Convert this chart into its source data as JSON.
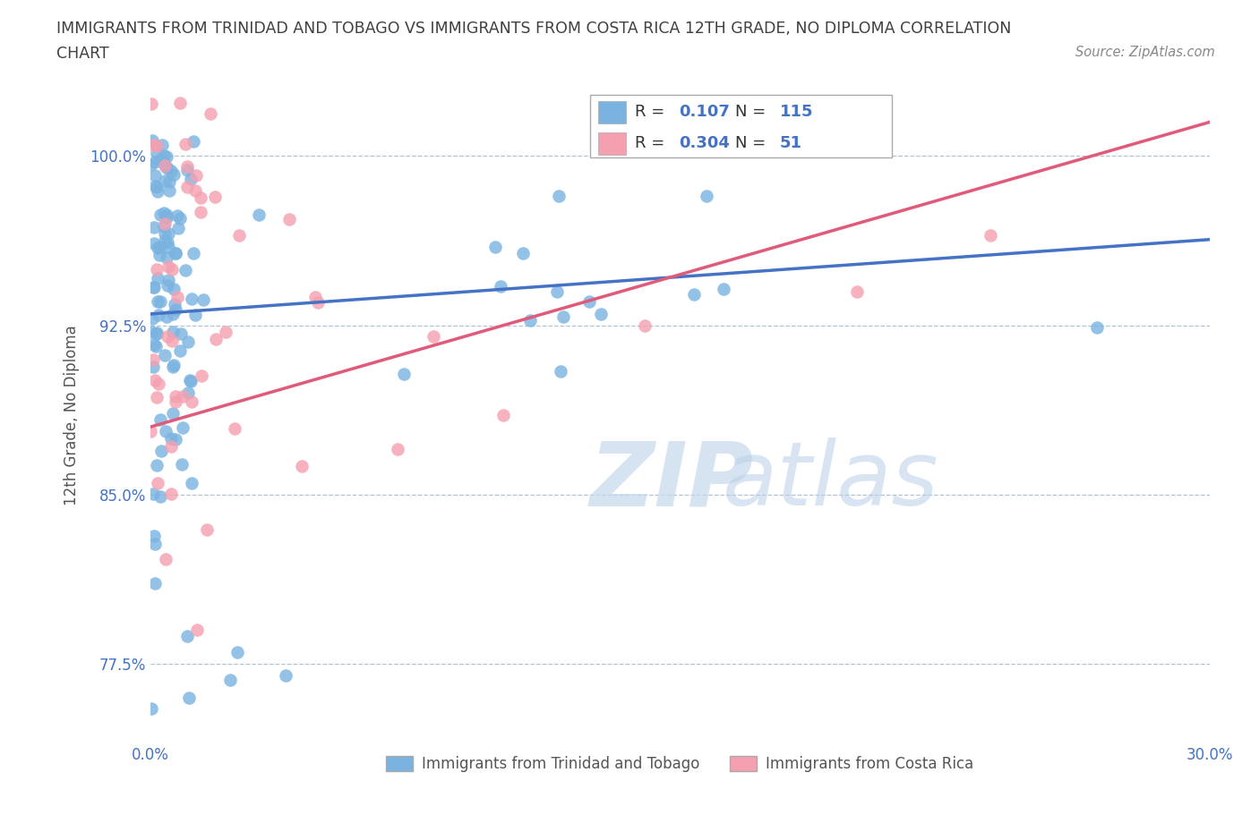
{
  "title_line1": "IMMIGRANTS FROM TRINIDAD AND TOBAGO VS IMMIGRANTS FROM COSTA RICA 12TH GRADE, NO DIPLOMA CORRELATION",
  "title_line2": "CHART",
  "source_text": "Source: ZipAtlas.com",
  "ylabel": "12th Grade, No Diploma",
  "xmin": 0.0,
  "xmax": 0.3,
  "ymin": 0.74,
  "ymax": 1.03,
  "yticks": [
    0.775,
    0.85,
    0.925,
    1.0
  ],
  "ytick_labels": [
    "77.5%",
    "85.0%",
    "92.5%",
    "100.0%"
  ],
  "xticks": [
    0.0,
    0.05,
    0.1,
    0.15,
    0.2,
    0.25,
    0.3
  ],
  "xtick_labels": [
    "0.0%",
    "",
    "",
    "",
    "",
    "",
    "30.0%"
  ],
  "series1_name": "Immigrants from Trinidad and Tobago",
  "series1_R": 0.107,
  "series1_N": 115,
  "series1_color": "#7ab3e0",
  "series1_line_color": "#4472c4",
  "series1_line_y0": 0.93,
  "series1_line_y1": 0.963,
  "series2_name": "Immigrants from Costa Rica",
  "series2_R": 0.304,
  "series2_N": 51,
  "series2_color": "#f4a0b0",
  "series2_line_color": "#e05a7a",
  "series2_line_y0": 0.88,
  "series2_line_y1": 1.015,
  "watermark_zip": "ZIP",
  "watermark_atlas": "atlas",
  "tick_color": "#4472c4",
  "grid_color": "#b0c4d8",
  "background_color": "#ffffff",
  "title_color": "#404040",
  "legend_R_color": "#4472c4",
  "legend_text_color": "#333333"
}
